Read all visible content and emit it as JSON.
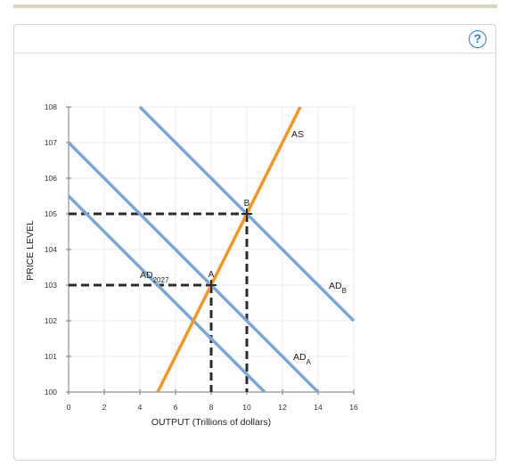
{
  "help_button": {
    "label": "?"
  },
  "chart_data": {
    "type": "line",
    "xlabel": "OUTPUT (Trillions of dollars)",
    "ylabel": "PRICE LEVEL",
    "xlim": [
      0,
      16
    ],
    "ylim": [
      100,
      108
    ],
    "xticks": [
      0,
      2,
      4,
      6,
      8,
      10,
      12,
      14,
      16
    ],
    "yticks": [
      100,
      101,
      102,
      103,
      104,
      105,
      106,
      107,
      108
    ],
    "grid": true,
    "colors": {
      "as": "#f5961e",
      "ad": "#7aa7d6",
      "guides": "#2b2b2b"
    },
    "series": [
      {
        "name": "AS",
        "x": [
          5,
          13
        ],
        "y": [
          100,
          108
        ]
      },
      {
        "name": "AD2027",
        "x": [
          0,
          11
        ],
        "y": [
          105.5,
          100
        ]
      },
      {
        "name": "ADA",
        "x": [
          0,
          14
        ],
        "y": [
          107,
          100
        ]
      },
      {
        "name": "ADB",
        "x": [
          4,
          16
        ],
        "y": [
          108,
          102
        ]
      }
    ],
    "curve_labels": [
      {
        "base": "AD",
        "sub": "2027",
        "x": 4,
        "y": 103.2
      },
      {
        "base": "AD",
        "sub": "A",
        "x": 12.6,
        "y": 100.9
      },
      {
        "base": "AD",
        "sub": "B",
        "x": 14.6,
        "y": 102.9
      },
      {
        "base": "AS",
        "sub": "",
        "x": 12.5,
        "y": 107.15
      }
    ],
    "points": [
      {
        "label": "A",
        "x": 8,
        "y": 103
      },
      {
        "label": "B",
        "x": 10,
        "y": 105
      }
    ]
  }
}
